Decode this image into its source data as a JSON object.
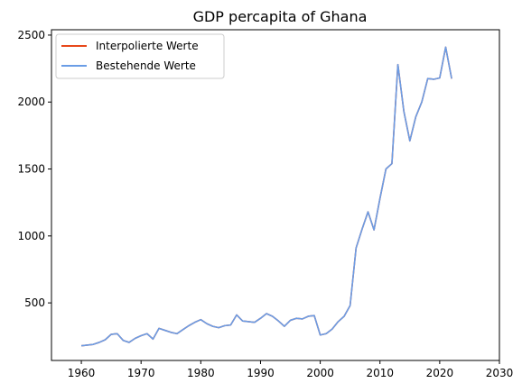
{
  "chart_data": {
    "type": "line",
    "title": "GDP percapita of Ghana",
    "xlabel": "",
    "ylabel": "",
    "xlim": [
      1955,
      2030
    ],
    "ylim": [
      70,
      2540
    ],
    "xticks": [
      1960,
      1970,
      1980,
      1990,
      2000,
      2010,
      2020,
      2030
    ],
    "yticks": [
      500,
      1000,
      1500,
      2000,
      2500
    ],
    "grid": false,
    "legend_position": "top-left",
    "x": [
      1960,
      1961,
      1962,
      1963,
      1964,
      1965,
      1966,
      1967,
      1968,
      1969,
      1970,
      1971,
      1972,
      1973,
      1974,
      1975,
      1976,
      1977,
      1978,
      1979,
      1980,
      1981,
      1982,
      1983,
      1984,
      1985,
      1986,
      1987,
      1988,
      1989,
      1990,
      1991,
      1992,
      1993,
      1994,
      1995,
      1996,
      1997,
      1998,
      1999,
      2000,
      2001,
      2002,
      2003,
      2004,
      2005,
      2006,
      2007,
      2008,
      2009,
      2010,
      2011,
      2012,
      2013,
      2014,
      2015,
      2016,
      2017,
      2018,
      2019,
      2020,
      2021,
      2022
    ],
    "series": [
      {
        "name": "Interpolierte Werte",
        "color": "#e8481a",
        "values": [
          180,
          185,
          190,
          205,
          225,
          265,
          270,
          220,
          205,
          235,
          255,
          270,
          230,
          310,
          295,
          280,
          270,
          300,
          330,
          355,
          375,
          345,
          325,
          315,
          330,
          335,
          410,
          365,
          360,
          355,
          385,
          420,
          400,
          365,
          325,
          370,
          385,
          380,
          400,
          405,
          260,
          270,
          305,
          360,
          400,
          480,
          910,
          1050,
          1180,
          1045,
          1280,
          1500,
          1540,
          2280,
          1930,
          1710,
          1890,
          2000,
          2175,
          2170,
          2180,
          2410,
          2175
        ]
      },
      {
        "name": "Bestehende Werte",
        "color": "#6a9de6",
        "values": [
          180,
          185,
          190,
          205,
          225,
          265,
          270,
          220,
          205,
          235,
          255,
          270,
          230,
          310,
          295,
          280,
          270,
          300,
          330,
          355,
          375,
          345,
          325,
          315,
          330,
          335,
          410,
          365,
          360,
          355,
          385,
          420,
          400,
          365,
          325,
          370,
          385,
          380,
          400,
          405,
          260,
          270,
          305,
          360,
          400,
          480,
          910,
          1050,
          1180,
          1045,
          1280,
          1500,
          1540,
          2280,
          1930,
          1710,
          1890,
          2000,
          2175,
          2170,
          2180,
          2410,
          2175
        ]
      }
    ]
  }
}
